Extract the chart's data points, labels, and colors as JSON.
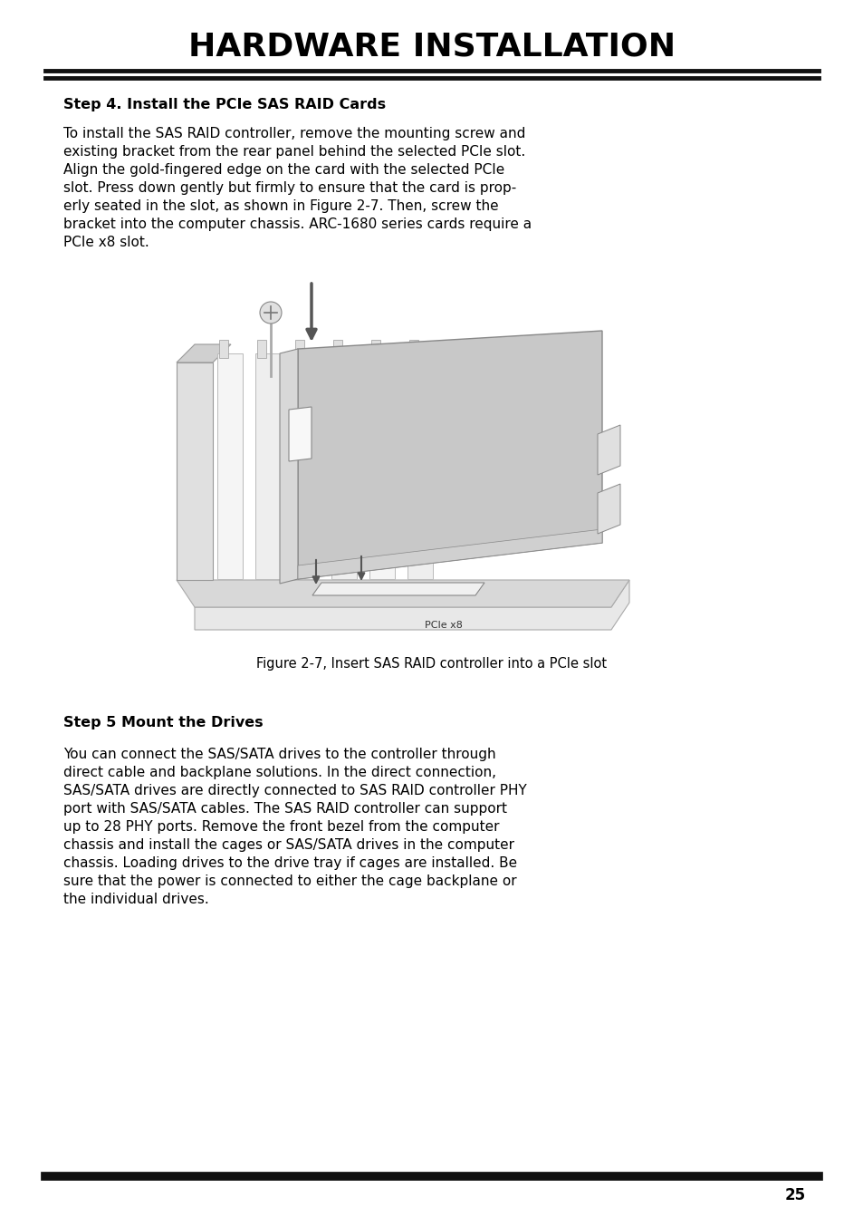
{
  "title": "HARDWARE INSTALLATION",
  "title_fontsize": 26,
  "title_fontweight": "bold",
  "bg_color": "#ffffff",
  "text_color": "#000000",
  "header_line_color": "#111111",
  "step4_heading": "Step 4. Install the PCIe SAS RAID Cards",
  "step4_heading_fontsize": 11.5,
  "step4_body": "To install the SAS RAID controller, remove the mounting screw and\nexisting bracket from the rear panel behind the selected PCIe slot.\nAlign the gold-fingered edge on the card with the selected PCIe\nslot. Press down gently but firmly to ensure that the card is prop-\nerly seated in the slot, as shown in Figure 2-7. Then, screw the\nbracket into the computer chassis. ARC-1680 series cards require a\nPCIe x8 slot.",
  "step4_body_fontsize": 11,
  "figure_caption": "Figure 2-7, Insert SAS RAID controller into a PCIe slot",
  "figure_caption_fontsize": 10.5,
  "step5_heading": "Step 5 Mount the Drives",
  "step5_heading_fontsize": 11.5,
  "step5_body": "You can connect the SAS/SATA drives to the controller through\ndirect cable and backplane solutions. In the direct connection,\nSAS/SATA drives are directly connected to SAS RAID controller PHY\nport with SAS/SATA cables. The SAS RAID controller can support\nup to 28 PHY ports. Remove the front bezel from the computer\nchassis and install the cages or SAS/SATA drives in the computer\nchassis. Loading drives to the drive tray if cages are installed. Be\nsure that the power is connected to either the cage backplane or\nthe individual drives.",
  "step5_body_fontsize": 11,
  "page_number": "25",
  "page_number_fontsize": 12
}
